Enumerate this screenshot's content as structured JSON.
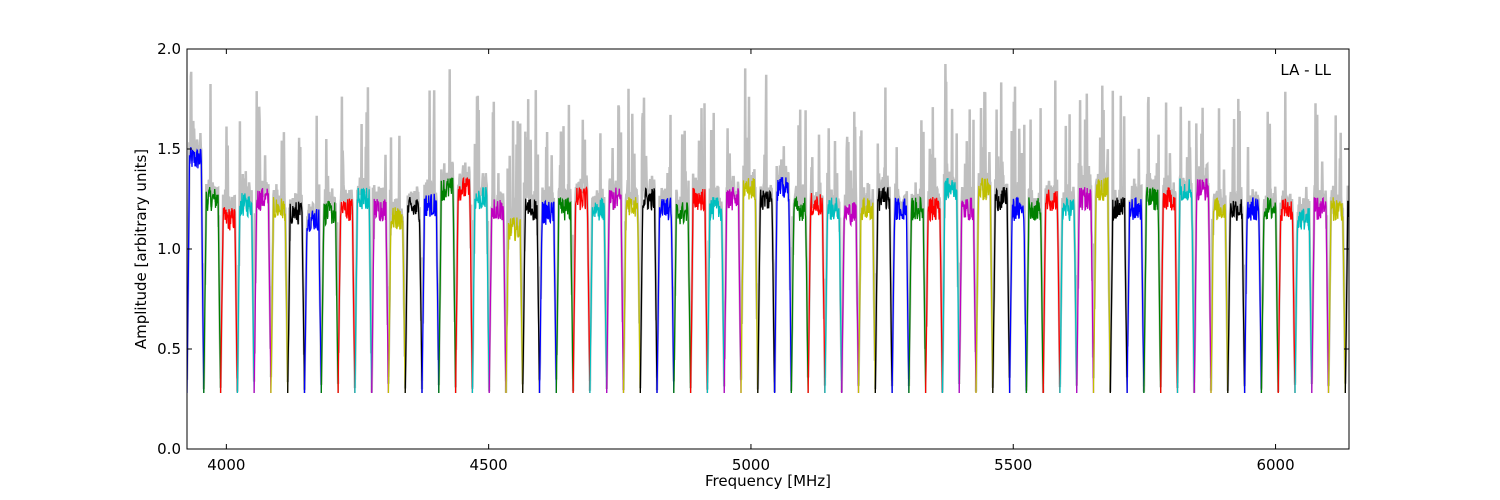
{
  "chart_data": {
    "type": "line",
    "title": "",
    "xlabel": "Frequency [MHz]",
    "ylabel": "Amplitude [arbitrary units]",
    "xlim": [
      3925,
      6140
    ],
    "ylim": [
      0.0,
      2.0
    ],
    "xticks": [
      4000,
      4500,
      5000,
      5500,
      6000
    ],
    "yticks": [
      0.0,
      0.5,
      1.0,
      1.5,
      2.0
    ],
    "xtick_labels": [
      "4000",
      "4500",
      "5000",
      "5500",
      "6000"
    ],
    "ytick_labels": [
      "0.0",
      "0.5",
      "1.0",
      "1.5",
      "2.0"
    ],
    "grid": false,
    "legend": "none",
    "annotation": "LA - LL",
    "background_color": "#bfbfbf",
    "colors": [
      "#0000ff",
      "#008000",
      "#ff0000",
      "#00bfbf",
      "#bf00bf",
      "#bfbf00",
      "#000000"
    ],
    "channel_width_mhz": 32,
    "channel_start_mhz": 3925,
    "channel_levels": [
      1.45,
      1.25,
      1.15,
      1.22,
      1.25,
      1.2,
      1.18,
      1.15,
      1.18,
      1.2,
      1.25,
      1.2,
      1.15,
      1.2,
      1.22,
      1.3,
      1.3,
      1.25,
      1.2,
      1.1,
      1.2,
      1.18,
      1.2,
      1.25,
      1.2,
      1.25,
      1.2,
      1.25,
      1.2,
      1.18,
      1.25,
      1.2,
      1.25,
      1.3,
      1.25,
      1.3,
      1.2,
      1.22,
      1.2,
      1.18,
      1.2,
      1.25,
      1.2,
      1.2,
      1.2,
      1.3,
      1.2,
      1.3,
      1.25,
      1.2,
      1.2,
      1.25,
      1.2,
      1.25,
      1.3,
      1.2,
      1.2,
      1.25,
      1.25,
      1.3,
      1.3,
      1.2,
      1.2,
      1.2,
      1.2,
      1.2,
      1.15,
      1.2,
      1.2,
      1.2
    ]
  }
}
